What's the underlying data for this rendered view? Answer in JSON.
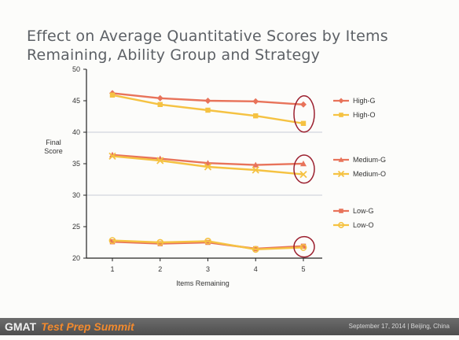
{
  "slide": {
    "title_line1": "Effect on Average Quantitative Scores by Items",
    "title_line2": "Remaining, Ability Group and Strategy"
  },
  "footer": {
    "brand": "GMAT",
    "event": "Test Prep Summit",
    "meta": "September 17, 2014  |  Beijing, China"
  },
  "colors": {
    "g_series": "#e8735a",
    "o_series": "#f5c242",
    "highlight_circle": "#9b1f2e",
    "gridline": "#c9ccd6"
  },
  "chart_data": {
    "type": "line",
    "title": "Effect on Average Quantitative Scores by Items Remaining, Ability Group and Strategy",
    "xlabel": "Items Remaining",
    "ylabel": "Final Score",
    "x": [
      1,
      2,
      3,
      4,
      5
    ],
    "ylim": [
      20,
      50
    ],
    "yticks": [
      20,
      25,
      30,
      35,
      40,
      45,
      50
    ],
    "grid": "horizontal at 30 and 40",
    "legend": "right",
    "series": [
      {
        "name": "High-G",
        "values": [
          46.2,
          45.4,
          45.0,
          44.9,
          44.4
        ],
        "marker": "diamond",
        "color": "#e8735a"
      },
      {
        "name": "High-O",
        "values": [
          45.9,
          44.4,
          43.5,
          42.6,
          41.4
        ],
        "marker": "square",
        "color": "#f5c242"
      },
      {
        "name": "Medium-G",
        "values": [
          36.4,
          35.8,
          35.1,
          34.8,
          35.0
        ],
        "marker": "triangle",
        "color": "#e8735a"
      },
      {
        "name": "Medium-O",
        "values": [
          36.2,
          35.5,
          34.5,
          34.0,
          33.3
        ],
        "marker": "x",
        "color": "#f5c242"
      },
      {
        "name": "Low-G",
        "values": [
          22.6,
          22.3,
          22.5,
          21.5,
          21.9
        ],
        "marker": "square",
        "color": "#e8735a"
      },
      {
        "name": "Low-O",
        "values": [
          22.8,
          22.5,
          22.7,
          21.4,
          21.7
        ],
        "marker": "circle",
        "color": "#f5c242"
      }
    ],
    "highlights": [
      {
        "x": 5,
        "y_range": [
          41.4,
          44.4
        ]
      },
      {
        "x": 5,
        "y_range": [
          33.3,
          35.0
        ]
      },
      {
        "x": 5,
        "y_range": [
          21.7,
          21.9
        ]
      }
    ]
  }
}
